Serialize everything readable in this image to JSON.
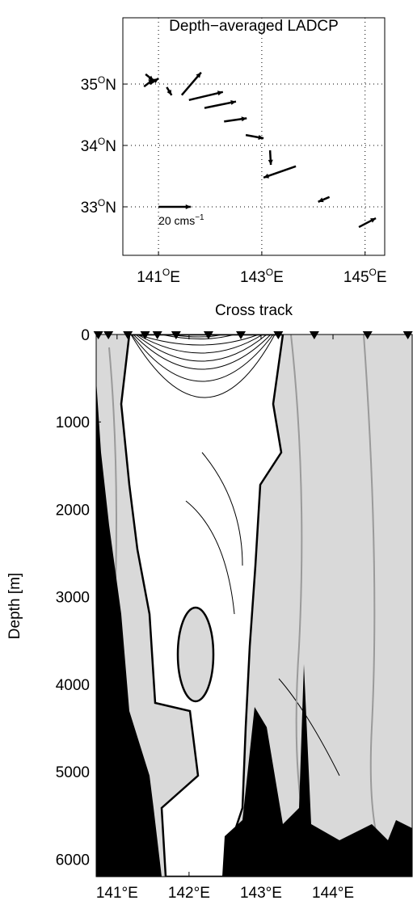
{
  "chart_data": [
    {
      "type": "quiver",
      "title": "Depth−averaged LADCP",
      "x": [
        140.75,
        140.72,
        140.83,
        141.16,
        141.45,
        141.59,
        141.89,
        142.27,
        142.69,
        143.16,
        143.66,
        144.31,
        144.88
      ],
      "y": [
        35.16,
        34.96,
        35.0,
        34.95,
        34.82,
        34.74,
        34.61,
        34.39,
        34.17,
        33.92,
        33.66,
        33.16,
        32.67
      ],
      "u": [
        5,
        6,
        5.5,
        3,
        12,
        21,
        19.5,
        14,
        11,
        0.5,
        -20,
        -7,
        10.5
      ],
      "v": [
        -4,
        4.5,
        3.5,
        -5,
        14,
        5,
        4,
        2,
        -2,
        -9,
        -7,
        -3,
        5.5
      ],
      "color": "#000000",
      "scale_arrow": {
        "x": 141,
        "y": 33,
        "u": 20,
        "v": 0,
        "label": "20 cms",
        "label_sup": "−1"
      },
      "xlim": [
        140.31,
        145.38
      ],
      "ylim": [
        32.21,
        36.08
      ],
      "xticks": [
        {
          "value": 141,
          "label": "141",
          "sup": "O",
          "unit": "E"
        },
        {
          "value": 143,
          "label": "143",
          "sup": "O",
          "unit": "E"
        },
        {
          "value": 145,
          "label": "145",
          "sup": "O",
          "unit": "E"
        }
      ],
      "yticks": [
        {
          "value": 33,
          "label": "33",
          "sup": "O",
          "unit": "N"
        },
        {
          "value": 34,
          "label": "34",
          "sup": "O",
          "unit": "N"
        },
        {
          "value": 35,
          "label": "35",
          "sup": "O",
          "unit": "N"
        }
      ],
      "grid": true
    },
    {
      "type": "contour",
      "title": "Cross track",
      "y_label": "Depth [m]",
      "stations": [
        140.74,
        140.88,
        141.15,
        141.39,
        141.56,
        141.82,
        142.27,
        142.72,
        143.24,
        143.74,
        144.48,
        145.04
      ],
      "xlim": [
        140.71,
        145.1
      ],
      "ylim": [
        0,
        6200
      ],
      "y_reversed": true,
      "xticks": [
        {
          "value": 141,
          "label": "141°E"
        },
        {
          "value": 142,
          "label": "142°E"
        },
        {
          "value": 143,
          "label": "143°E"
        },
        {
          "value": 144,
          "label": "144°E"
        }
      ],
      "yticks": [
        0,
        1000,
        2000,
        3000,
        4000,
        5000,
        6000
      ],
      "grid": false
    }
  ]
}
